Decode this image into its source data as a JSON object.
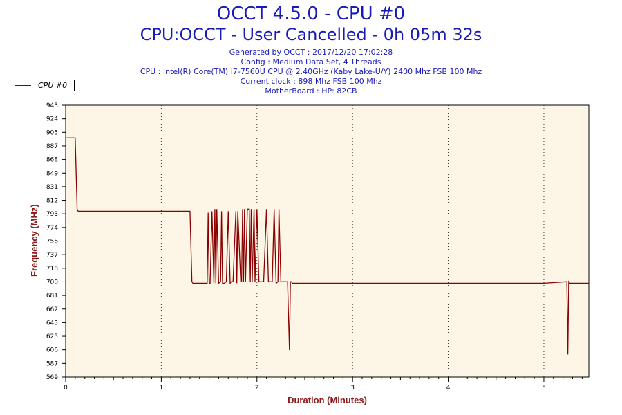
{
  "header": {
    "title": "OCCT 4.5.0 - CPU #0",
    "subtitle": "CPU:OCCT - User Cancelled - 0h 05m 32s",
    "info_lines": [
      "Generated by OCCT : 2017/12/20 17:02:28",
      "Config : Medium Data Set, 4 Threads",
      "CPU : Intel(R) Core(TM) i7-7560U CPU @ 2.40GHz (Kaby Lake-U/Y) 2400 Mhz FSB 100 Mhz",
      "Current clock : 898 Mhz FSB 100 Mhz",
      "MotherBoard : HP: 82CB"
    ]
  },
  "colors": {
    "line": "#8b0000",
    "plot_background": "#fdf6e6",
    "title": "#1a1ab8",
    "axis_label": "#8b1a1a"
  },
  "chart_data": {
    "type": "line",
    "title": "OCCT 4.5.0 - CPU #0",
    "xlabel": "Duration (Minutes)",
    "ylabel": "Frequency (MHz)",
    "xlim": [
      0,
      5.47
    ],
    "ylim": [
      569,
      943
    ],
    "x_ticks": [
      "0",
      "1",
      "2",
      "3",
      "4",
      "5"
    ],
    "y_ticks": [
      "943",
      "924",
      "905",
      "887",
      "868",
      "849",
      "831",
      "812",
      "793",
      "774",
      "756",
      "737",
      "718",
      "700",
      "681",
      "662",
      "643",
      "625",
      "606",
      "587",
      "569"
    ],
    "grid": "vertical dotted at each minute",
    "legend": "top-left",
    "series": [
      {
        "name": "CPU #0",
        "x": [
          0,
          0.09,
          0.1,
          0.12,
          0.13,
          1.0,
          1.3,
          1.32,
          1.33,
          1.48,
          1.49,
          1.5,
          1.51,
          1.53,
          1.55,
          1.56,
          1.57,
          1.58,
          1.6,
          1.62,
          1.63,
          1.64,
          1.66,
          1.68,
          1.7,
          1.72,
          1.73,
          1.75,
          1.78,
          1.79,
          1.8,
          1.83,
          1.84,
          1.85,
          1.86,
          1.87,
          1.88,
          1.9,
          1.92,
          1.93,
          1.94,
          1.95,
          1.97,
          1.98,
          2.0,
          2.02,
          2.03,
          2.05,
          2.07,
          2.1,
          2.12,
          2.14,
          2.16,
          2.18,
          2.2,
          2.22,
          2.23,
          2.25,
          2.27,
          2.3,
          2.32,
          2.34,
          2.35,
          2.36,
          2.37,
          2.5,
          3.0,
          4.0,
          4.9,
          5.0,
          5.23,
          5.24,
          5.25,
          5.26,
          5.27,
          5.28,
          5.47
        ],
        "y": [
          898,
          898,
          898,
          800,
          797,
          797,
          797,
          700,
          698,
          698,
          795,
          698,
          698,
          797,
          698,
          800,
          698,
          800,
          698,
          700,
          797,
          698,
          698,
          700,
          797,
          698,
          700,
          700,
          797,
          698,
          797,
          700,
          700,
          800,
          700,
          800,
          700,
          800,
          800,
          700,
          800,
          700,
          800,
          700,
          800,
          700,
          700,
          700,
          700,
          800,
          700,
          700,
          700,
          800,
          698,
          700,
          800,
          700,
          700,
          700,
          700,
          606,
          700,
          700,
          698,
          698,
          698,
          698,
          698,
          698,
          700,
          700,
          600,
          700,
          698,
          698,
          698
        ]
      }
    ]
  }
}
